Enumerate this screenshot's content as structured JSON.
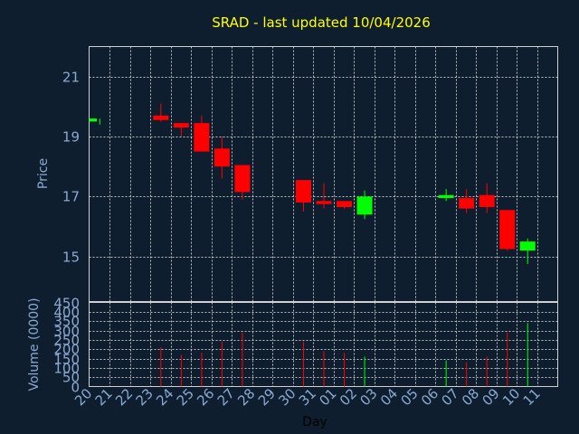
{
  "chart_data": {
    "type": "candlestick",
    "title": "SRAD - last updated 10/04/2026",
    "xlabel": "Day",
    "price_ylabel": "Price",
    "volume_ylabel": "Volume (0000)",
    "price_ylim": [
      13.5,
      22
    ],
    "price_yticks": [
      15,
      17,
      19,
      21
    ],
    "volume_ylim": [
      0,
      450
    ],
    "volume_yticks": [
      0,
      50,
      100,
      150,
      200,
      250,
      300,
      350,
      400,
      450
    ],
    "days": [
      "20",
      "21",
      "22",
      "23",
      "24",
      "25",
      "26",
      "27",
      "28",
      "29",
      "30",
      "31",
      "01",
      "02",
      "03",
      "04",
      "05",
      "06",
      "07",
      "08",
      "09",
      "10",
      "11"
    ],
    "candles": [
      {
        "day": "20",
        "open": 19.5,
        "high": 19.6,
        "low": 19.4,
        "close": 19.6,
        "volume": 0
      },
      {
        "day": "23",
        "open": 19.7,
        "high": 20.1,
        "low": 19.5,
        "close": 19.55,
        "volume": 210
      },
      {
        "day": "24",
        "open": 19.45,
        "high": 19.45,
        "low": 19.0,
        "close": 19.3,
        "volume": 170
      },
      {
        "day": "25",
        "open": 19.45,
        "high": 19.7,
        "low": 18.5,
        "close": 18.5,
        "volume": 180
      },
      {
        "day": "26",
        "open": 18.6,
        "high": 19.0,
        "low": 17.6,
        "close": 18.0,
        "volume": 240
      },
      {
        "day": "27",
        "open": 18.05,
        "high": 18.05,
        "low": 16.9,
        "close": 17.15,
        "volume": 290
      },
      {
        "day": "30",
        "open": 17.55,
        "high": 17.55,
        "low": 16.5,
        "close": 16.8,
        "volume": 240
      },
      {
        "day": "31",
        "open": 16.85,
        "high": 17.45,
        "low": 16.6,
        "close": 16.75,
        "volume": 190
      },
      {
        "day": "01",
        "open": 16.85,
        "high": 16.85,
        "low": 16.6,
        "close": 16.65,
        "volume": 180
      },
      {
        "day": "02",
        "open": 16.4,
        "high": 17.2,
        "low": 16.25,
        "close": 17.0,
        "volume": 160
      },
      {
        "day": "06",
        "open": 16.95,
        "high": 17.25,
        "low": 16.85,
        "close": 17.05,
        "volume": 140
      },
      {
        "day": "07",
        "open": 16.95,
        "high": 17.25,
        "low": 16.45,
        "close": 16.6,
        "volume": 130
      },
      {
        "day": "08",
        "open": 17.05,
        "high": 17.45,
        "low": 16.45,
        "close": 16.65,
        "volume": 160
      },
      {
        "day": "09",
        "open": 16.55,
        "high": 16.55,
        "low": 15.2,
        "close": 15.25,
        "volume": 290
      },
      {
        "day": "10",
        "open": 15.2,
        "high": 15.6,
        "low": 14.75,
        "close": 15.5,
        "volume": 340
      }
    ],
    "colors": {
      "up": "#00ff00",
      "down": "#ff0000",
      "background": "#0f1e2f",
      "title": "#ffff00",
      "axis_text": "#8aa9d0",
      "grid": "#d0d0d0"
    },
    "grid": true
  }
}
